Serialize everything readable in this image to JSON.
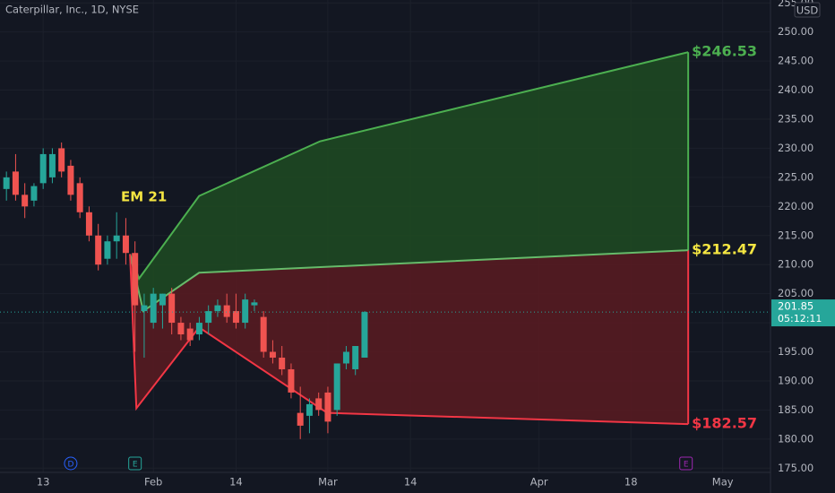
{
  "chart_data": {
    "type": "candlestick",
    "title": "Caterpillar, Inc., 1D, NYSE",
    "currency": "USD",
    "annotation": "EM 21",
    "countdown": "05:12:11",
    "grid": true,
    "up_color": "#26a69a",
    "down_color": "#ef5350",
    "xlim": [
      -4.7,
      79.2
    ],
    "ylim": [
      174.5,
      255.5
    ],
    "xticks": [
      {
        "value": 0,
        "label": "13"
      },
      {
        "value": 12,
        "label": "Feb"
      },
      {
        "value": 21,
        "label": "14"
      },
      {
        "value": 31,
        "label": "Mar"
      },
      {
        "value": 40,
        "label": "14"
      },
      {
        "value": 54,
        "label": "Apr"
      },
      {
        "value": 64,
        "label": "18"
      },
      {
        "value": 74,
        "label": "May"
      }
    ],
    "yticks": [
      {
        "value": 175,
        "label": "175.00"
      },
      {
        "value": 180,
        "label": "180.00"
      },
      {
        "value": 185,
        "label": "185.00"
      },
      {
        "value": 190,
        "label": "190.00"
      },
      {
        "value": 195,
        "label": "195.00"
      },
      {
        "value": 200,
        "label": "200.00"
      },
      {
        "value": 205,
        "label": "205.00"
      },
      {
        "value": 210,
        "label": "210.00"
      },
      {
        "value": 215,
        "label": "215.00"
      },
      {
        "value": 220,
        "label": "220.00"
      },
      {
        "value": 225,
        "label": "225.00"
      },
      {
        "value": 230,
        "label": "230.00"
      },
      {
        "value": 235,
        "label": "235.00"
      },
      {
        "value": 240,
        "label": "240.00"
      },
      {
        "value": 245,
        "label": "245.00"
      },
      {
        "value": 250,
        "label": "250.00"
      },
      {
        "value": 255,
        "label": "255.00"
      }
    ],
    "x": [
      -4,
      -3,
      -2,
      -1,
      0,
      1,
      2,
      3,
      4,
      5,
      6,
      7,
      8,
      9,
      10,
      11,
      12,
      13,
      14,
      15,
      16,
      17,
      18,
      19,
      20,
      21,
      22,
      23,
      24,
      25,
      26,
      27,
      28,
      29,
      30,
      31,
      32,
      33,
      34,
      35
    ],
    "open": [
      223,
      226,
      222,
      221,
      224,
      225,
      230,
      227,
      224,
      219,
      215,
      211,
      214,
      215,
      212,
      202,
      200,
      203,
      205,
      200,
      199,
      198,
      200,
      202,
      203,
      202,
      200,
      203,
      201,
      195,
      194,
      192,
      184.5,
      184,
      187,
      188,
      185,
      193,
      192,
      194
    ],
    "high": [
      226,
      229,
      224,
      224,
      230,
      230,
      231,
      228,
      225,
      220,
      217,
      215,
      219,
      218,
      214,
      205,
      206,
      205,
      206,
      201,
      200,
      201,
      203,
      204,
      205,
      205,
      205,
      204,
      202,
      197,
      196,
      193,
      189,
      187,
      188,
      189,
      193,
      196,
      196,
      202
    ],
    "low": [
      221,
      221,
      218,
      220,
      223,
      224,
      225,
      221,
      218,
      214,
      209,
      210,
      211,
      210,
      195,
      194,
      199,
      199,
      198,
      197,
      196,
      197,
      198,
      201,
      200,
      199,
      199,
      202,
      194,
      193,
      191,
      187,
      180,
      181,
      184,
      181,
      184,
      192,
      191,
      194
    ],
    "close": [
      225,
      222,
      220,
      223.5,
      229,
      229,
      226,
      222,
      219,
      215,
      210,
      214,
      215,
      212,
      203,
      203,
      205,
      205,
      200,
      198,
      197,
      200,
      202,
      203,
      201,
      200,
      204,
      203.5,
      195,
      194,
      192,
      188,
      182.3,
      186,
      185,
      183,
      193,
      195,
      196,
      201.85
    ],
    "lines": [
      {
        "color": "#4caf50",
        "fill": "#1e4b22",
        "x": [
          9.46,
          10.44,
          16.98,
          30.15,
          70.24
        ],
        "values": [
          211.8,
          207.6,
          221.8,
          231.2,
          246.53
        ],
        "end_label": "$246.53",
        "label_color": "#4caf50"
      },
      {
        "color": "#66bb6a",
        "fill": "#5a1b21",
        "x": [
          9.46,
          10.9,
          16.98,
          70.24
        ],
        "values": [
          211.8,
          202,
          208.6,
          212.47
        ],
        "end_label": "$212.47",
        "label_color": "#f5e642"
      },
      {
        "color": "#f23645",
        "x": [
          9.46,
          10.15,
          16.98,
          30.93,
          70.24
        ],
        "values": [
          211.8,
          185.3,
          199.2,
          184.5,
          182.57
        ],
        "end_label": "$182.57",
        "label_color": "#f23645"
      }
    ],
    "events": [
      {
        "label": "D",
        "x": 3,
        "color": "#2962ff",
        "shape": "circle"
      },
      {
        "label": "E",
        "x": 10,
        "color": "#26a69a",
        "shape": "square"
      },
      {
        "label": "E",
        "x": 70,
        "color": "#9c27b0",
        "shape": "square"
      }
    ]
  }
}
